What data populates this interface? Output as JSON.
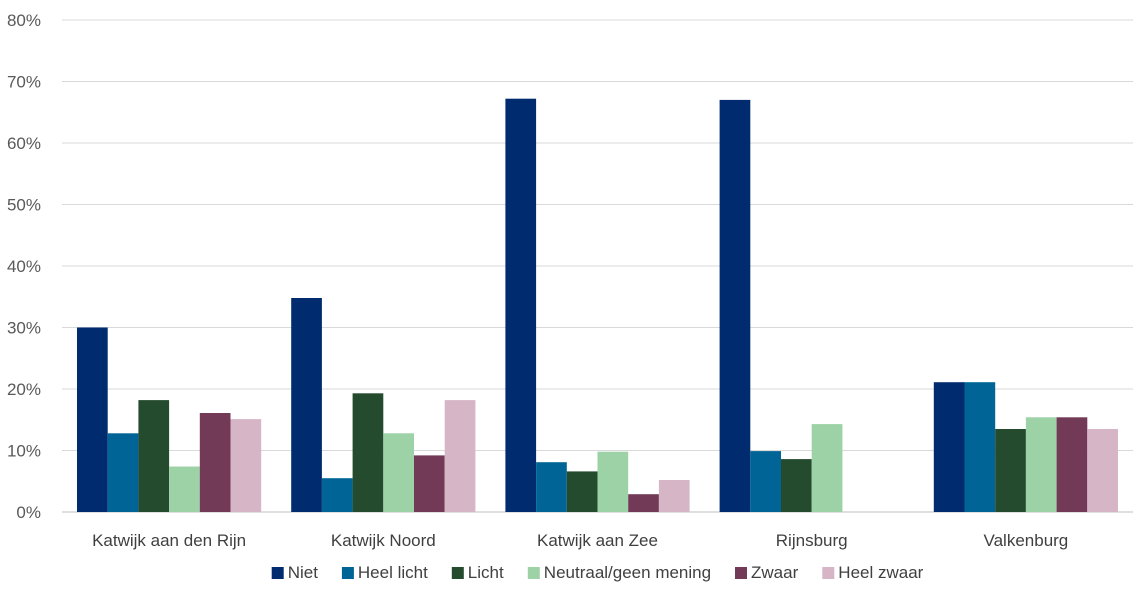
{
  "chart_data": {
    "type": "bar",
    "categories": [
      "Katwijk aan den Rijn",
      "Katwijk Noord",
      "Katwijk aan Zee",
      "Rijnsburg",
      "Valkenburg"
    ],
    "series": [
      {
        "name": "Niet",
        "color": "#002B6E",
        "values": [
          30,
          34.8,
          67.2,
          67,
          21.1
        ]
      },
      {
        "name": "Heel licht",
        "color": "#006596",
        "values": [
          12.8,
          5.5,
          8.1,
          9.9,
          21.1
        ]
      },
      {
        "name": "Licht",
        "color": "#244B2E",
        "values": [
          18.2,
          19.3,
          6.6,
          8.6,
          13.5
        ]
      },
      {
        "name": "Neutraal/geen mening",
        "color": "#9DD1A6",
        "values": [
          7.4,
          12.8,
          9.8,
          14.3,
          15.4
        ]
      },
      {
        "name": "Zwaar",
        "color": "#723A57",
        "values": [
          16.1,
          9.2,
          2.9,
          0,
          15.4
        ]
      },
      {
        "name": "Heel zwaar",
        "color": "#D6B6C6",
        "values": [
          15.1,
          18.2,
          5.2,
          0,
          13.5
        ]
      }
    ],
    "yticks": [
      "0%",
      "10%",
      "20%",
      "30%",
      "40%",
      "50%",
      "60%",
      "70%",
      "80%"
    ],
    "ylim": [
      0,
      80
    ],
    "grid": true,
    "legend": "bottom",
    "gridColor": "#D9D9D9"
  }
}
